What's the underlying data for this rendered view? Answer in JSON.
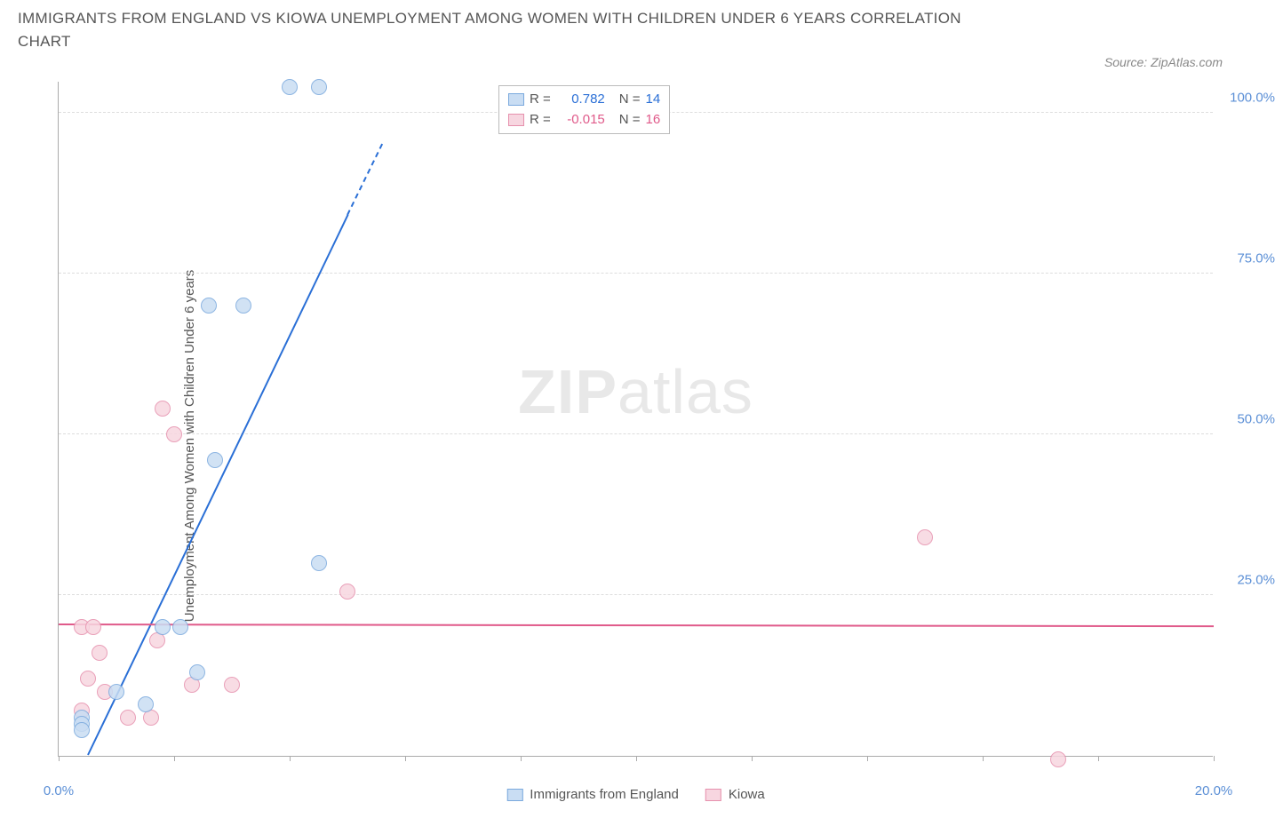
{
  "title": "IMMIGRANTS FROM ENGLAND VS KIOWA UNEMPLOYMENT AMONG WOMEN WITH CHILDREN UNDER 6 YEARS CORRELATION CHART",
  "source_label": "Source: ZipAtlas.com",
  "ylabel": "Unemployment Among Women with Children Under 6 years",
  "watermark_zip": "ZIP",
  "watermark_atlas": "atlas",
  "chart": {
    "type": "scatter",
    "xlim": [
      0,
      20
    ],
    "ylim": [
      0,
      105
    ],
    "x_ticks": [
      0,
      2,
      4,
      6,
      8,
      10,
      12,
      14,
      16,
      18,
      20
    ],
    "x_tick_labels": {
      "0": "0.0%",
      "20": "20.0%"
    },
    "y_ticks": [
      25,
      50,
      75,
      100
    ],
    "y_tick_labels": [
      "25.0%",
      "50.0%",
      "75.0%",
      "100.0%"
    ],
    "grid_color": "#dddddd",
    "axis_color": "#aaaaaa",
    "right_tick_color": "#5b8fd6",
    "x_tick_label_color": "#5b8fd6",
    "marker_radius": 9,
    "marker_stroke_width": 1.5,
    "series": [
      {
        "name": "Immigrants from England",
        "legend_label": "Immigrants from England",
        "fill": "#c9ddf3",
        "stroke": "#7aa9dd",
        "line_color": "#2a6fd6",
        "R_label": "R =",
        "R_value": "0.782",
        "N_label": "N =",
        "N_value": "14",
        "value_color": "#2a6fd6",
        "points": [
          {
            "x": 4.0,
            "y": 104
          },
          {
            "x": 4.5,
            "y": 104
          },
          {
            "x": 2.6,
            "y": 70
          },
          {
            "x": 3.2,
            "y": 70
          },
          {
            "x": 2.7,
            "y": 46
          },
          {
            "x": 4.5,
            "y": 30
          },
          {
            "x": 1.8,
            "y": 20
          },
          {
            "x": 2.1,
            "y": 20
          },
          {
            "x": 2.4,
            "y": 13
          },
          {
            "x": 1.0,
            "y": 10
          },
          {
            "x": 1.5,
            "y": 8
          },
          {
            "x": 0.4,
            "y": 6
          },
          {
            "x": 0.4,
            "y": 5
          },
          {
            "x": 0.4,
            "y": 4
          }
        ],
        "trend": {
          "x1": 0.5,
          "y1": 0,
          "x2": 5.0,
          "y2": 84,
          "x2_dash": 5.6,
          "y2_dash": 95
        }
      },
      {
        "name": "Kiowa",
        "legend_label": "Kiowa",
        "fill": "#f7d6e0",
        "stroke": "#e690ad",
        "line_color": "#e05a8a",
        "R_label": "R =",
        "R_value": "-0.015",
        "N_label": "N =",
        "N_value": "16",
        "value_color": "#e05a8a",
        "points": [
          {
            "x": 1.8,
            "y": 54
          },
          {
            "x": 2.0,
            "y": 50
          },
          {
            "x": 15.0,
            "y": 34
          },
          {
            "x": 5.0,
            "y": 25.5
          },
          {
            "x": 0.4,
            "y": 20
          },
          {
            "x": 0.6,
            "y": 20
          },
          {
            "x": 1.7,
            "y": 18
          },
          {
            "x": 0.7,
            "y": 16
          },
          {
            "x": 3.0,
            "y": 11
          },
          {
            "x": 2.3,
            "y": 11
          },
          {
            "x": 0.5,
            "y": 12
          },
          {
            "x": 0.8,
            "y": 10
          },
          {
            "x": 0.4,
            "y": 7
          },
          {
            "x": 1.2,
            "y": 6
          },
          {
            "x": 1.6,
            "y": 6
          },
          {
            "x": 17.3,
            "y": -0.5
          }
        ],
        "trend": {
          "x1": 0,
          "y1": 20.3,
          "x2": 20,
          "y2": 20.0
        }
      }
    ]
  }
}
